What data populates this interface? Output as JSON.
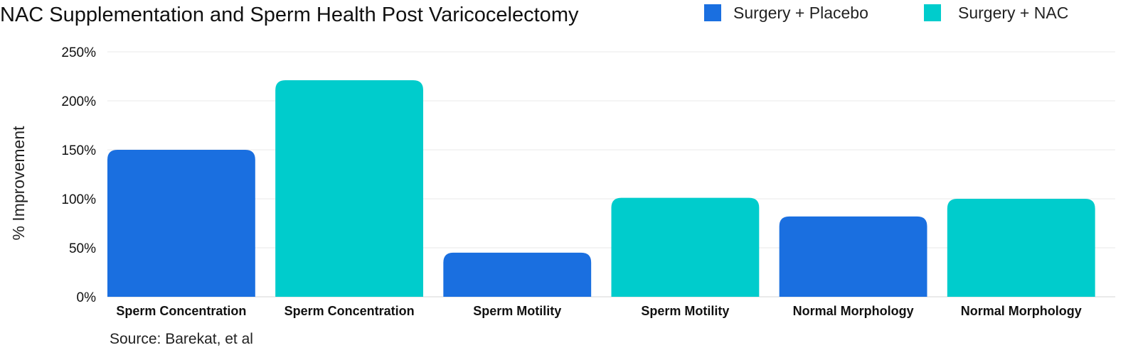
{
  "chart_data": {
    "type": "bar",
    "title": "NAC Supplementation and Sperm Health Post Varicocelectomy",
    "ylabel": "% Improvement",
    "xlabel": "",
    "ylim": [
      0,
      250
    ],
    "yticks": [
      0,
      50,
      100,
      150,
      200,
      250
    ],
    "ytick_labels": [
      "0%",
      "50%",
      "100%",
      "150%",
      "200%",
      "250%"
    ],
    "grid": true,
    "legend_position": "top-right",
    "series": [
      {
        "name": "Surgery + Placebo",
        "color": "#1a6fe0"
      },
      {
        "name": "Surgery + NAC",
        "color": "#00cccc"
      }
    ],
    "bars": [
      {
        "category": "Sperm Concentration",
        "series": "Surgery + Placebo",
        "value": 150
      },
      {
        "category": "Sperm Concentration",
        "series": "Surgery + NAC",
        "value": 221
      },
      {
        "category": "Sperm Motility",
        "series": "Surgery + Placebo",
        "value": 45
      },
      {
        "category": "Sperm Motility",
        "series": "Surgery + NAC",
        "value": 101
      },
      {
        "category": "Normal Morphology",
        "series": "Surgery + Placebo",
        "value": 82
      },
      {
        "category": "Normal Morphology",
        "series": "Surgery + NAC",
        "value": 100
      }
    ],
    "source": "Source: Barekat, et al"
  }
}
